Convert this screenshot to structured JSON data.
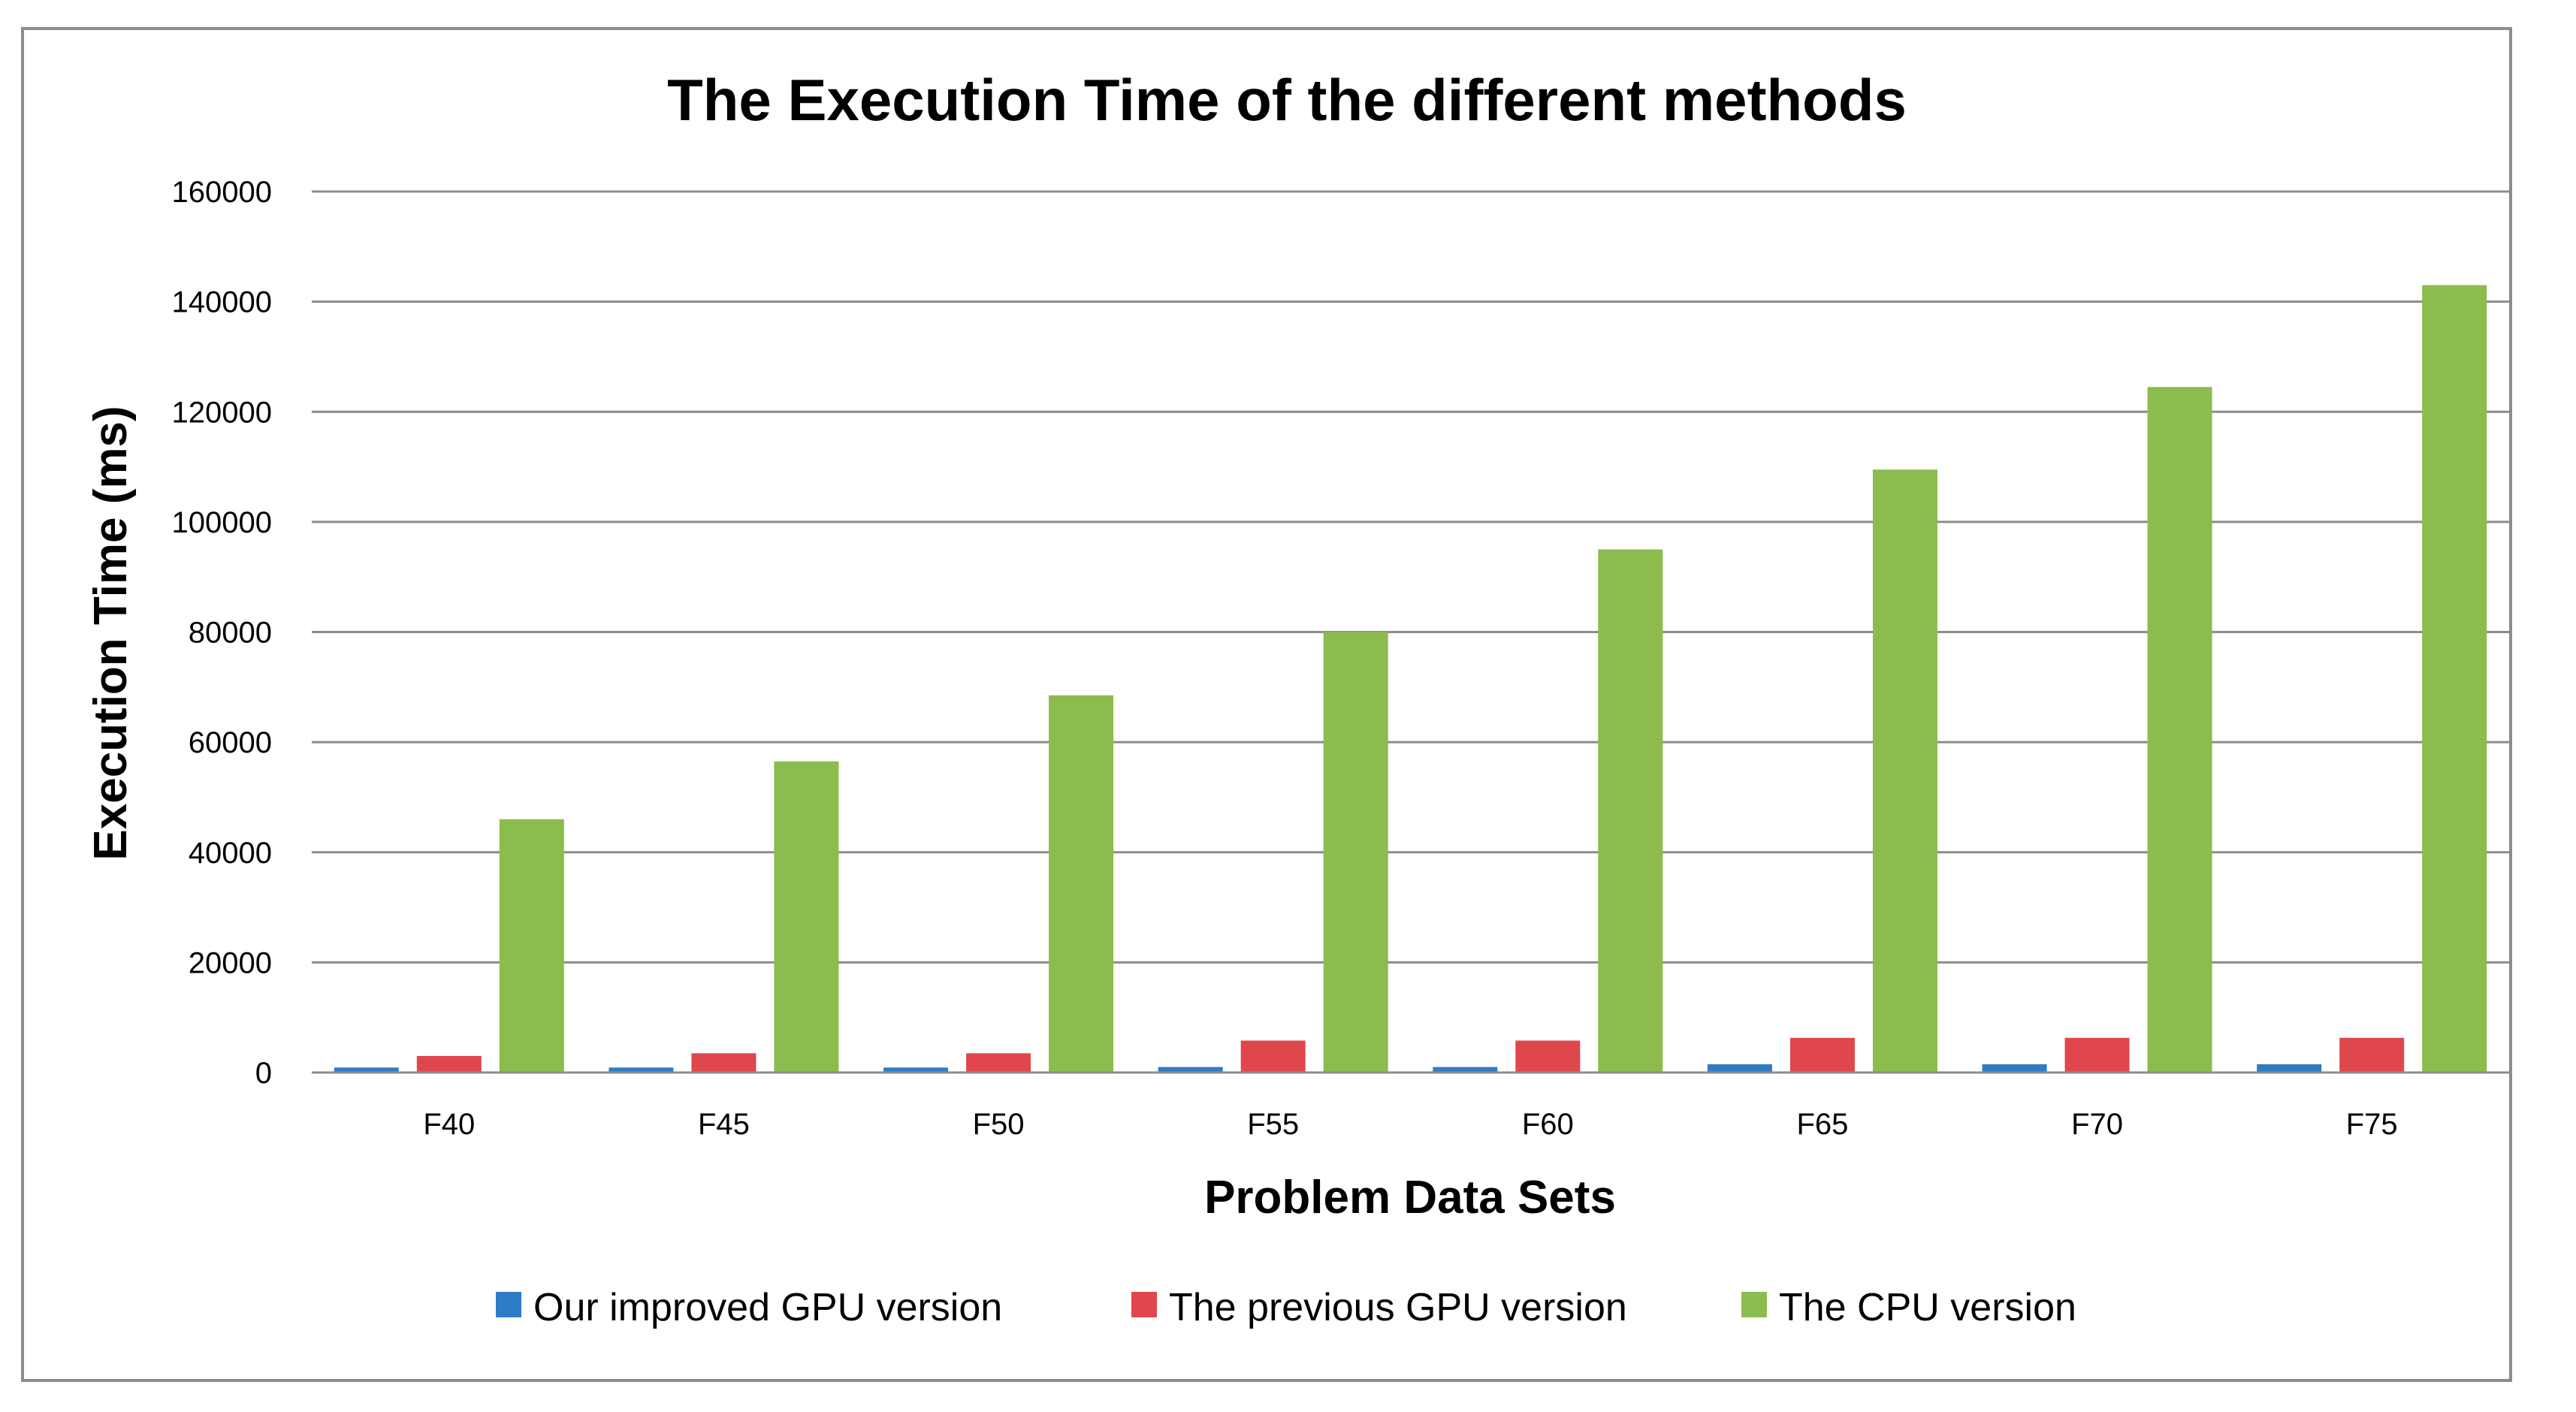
{
  "chart_data": {
    "type": "bar",
    "title": "The Execution Time of the different methods",
    "xlabel": "Problem Data Sets",
    "ylabel": "Execution Time (ms)",
    "ylim": [
      0,
      160000
    ],
    "yticks": [
      "0",
      "20000",
      "40000",
      "60000",
      "80000",
      "100000",
      "120000",
      "140000",
      "160000"
    ],
    "ytick_values": [
      0,
      20000,
      40000,
      60000,
      80000,
      100000,
      120000,
      140000,
      160000
    ],
    "grid": true,
    "legend_position": "bottom",
    "categories": [
      "F40",
      "F45",
      "F50",
      "F55",
      "F60",
      "F65",
      "F70",
      "F75"
    ],
    "series": [
      {
        "name": "Our improved GPU version",
        "color": "#2E7CC4",
        "values": [
          900,
          900,
          900,
          1000,
          1000,
          1500,
          1500,
          1500
        ]
      },
      {
        "name": "The previous GPU version",
        "color": "#E0474C",
        "values": [
          3000,
          3500,
          3500,
          5800,
          5800,
          6300,
          6300,
          6300
        ]
      },
      {
        "name": "The CPU version",
        "color": "#8CBB4E",
        "values": [
          46000,
          56500,
          68500,
          80000,
          95000,
          109500,
          124500,
          143000
        ]
      }
    ]
  }
}
